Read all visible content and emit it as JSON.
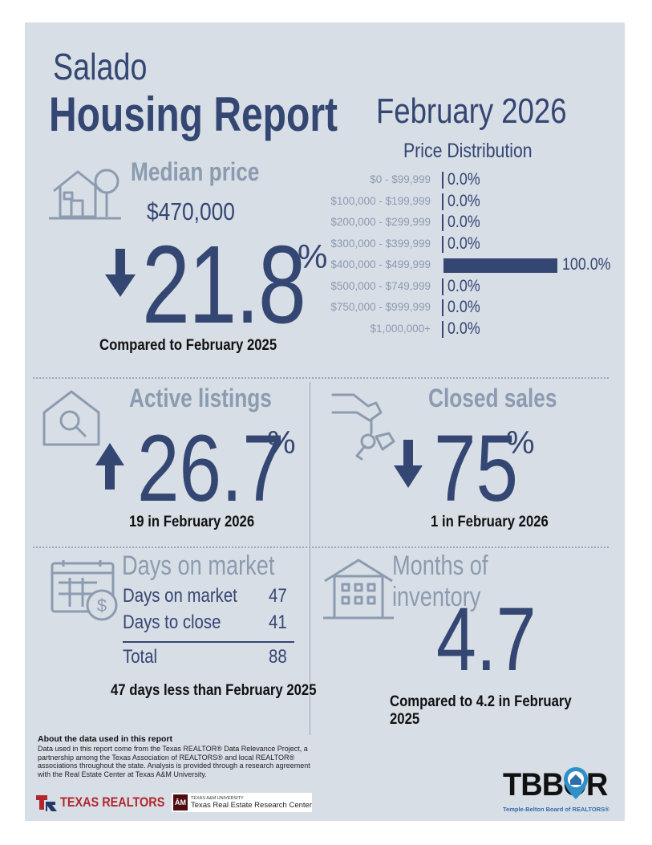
{
  "header": {
    "city": "Salado",
    "title": "Housing Report",
    "month": "February 2026"
  },
  "price_distribution": {
    "title": "Price Distribution",
    "rows": [
      {
        "label": "$0 - $99,999",
        "value": "0.0%",
        "fraction": 0.0
      },
      {
        "label": "$100,000 - $199,999",
        "value": "0.0%",
        "fraction": 0.0
      },
      {
        "label": "$200,000 - $299,999",
        "value": "0.0%",
        "fraction": 0.0
      },
      {
        "label": "$300,000 - $399,999",
        "value": "0.0%",
        "fraction": 0.0
      },
      {
        "label": "$400,000 - $499,999",
        "value": "100.0%",
        "fraction": 1.0
      },
      {
        "label": "$500,000 - $749,999",
        "value": "0.0%",
        "fraction": 0.0
      },
      {
        "label": "$750,000 - $999,999",
        "value": "0.0%",
        "fraction": 0.0
      },
      {
        "label": "$1,000,000+",
        "value": "0.0%",
        "fraction": 0.0
      }
    ]
  },
  "median": {
    "label": "Median price",
    "price": "$470,000",
    "change": "21.8",
    "pct_sign": "%",
    "direction": "down",
    "comparison": "Compared to February 2025"
  },
  "active": {
    "label": "Active listings",
    "change": "26.7",
    "pct_sign": "%",
    "direction": "up",
    "note": "19 in February 2026"
  },
  "closed": {
    "label": "Closed sales",
    "change": "75",
    "pct_sign": "%",
    "direction": "down",
    "note": "1 in February 2026"
  },
  "dom": {
    "label": "Days on market",
    "rows": [
      {
        "label": "Days on market",
        "value": "47"
      },
      {
        "label": "Days to close",
        "value": "41"
      }
    ],
    "total_label": "Total",
    "total_value": "88",
    "note": "47 days less than February 2025"
  },
  "moi": {
    "label": "Months of inventory",
    "value": "4.7",
    "note": "Compared to 4.2 in February 2025"
  },
  "footer": {
    "about_title": "About the data used in this report",
    "about_body": "Data used in this report come from the Texas REALTOR® Data Relevance Project, a partnership among the Texas Association of REALTORS® and local REALTOR® associations throughout the state. Analysis is provided through a research agreement with the Real Estate Center at Texas A&M University.",
    "texas_realtors": "TEXAS REALTORS",
    "tamu_small": "TEXAS A&M UNIVERSITY",
    "tamu_center": "Texas Real Estate Research Center",
    "tbbor": "TBBOR",
    "tbbor_sub": "Temple-Belton Board of REALTORS®"
  },
  "colors": {
    "navy": "#344672",
    "slate": "#8b9bb0",
    "background": "#d8dee6"
  }
}
